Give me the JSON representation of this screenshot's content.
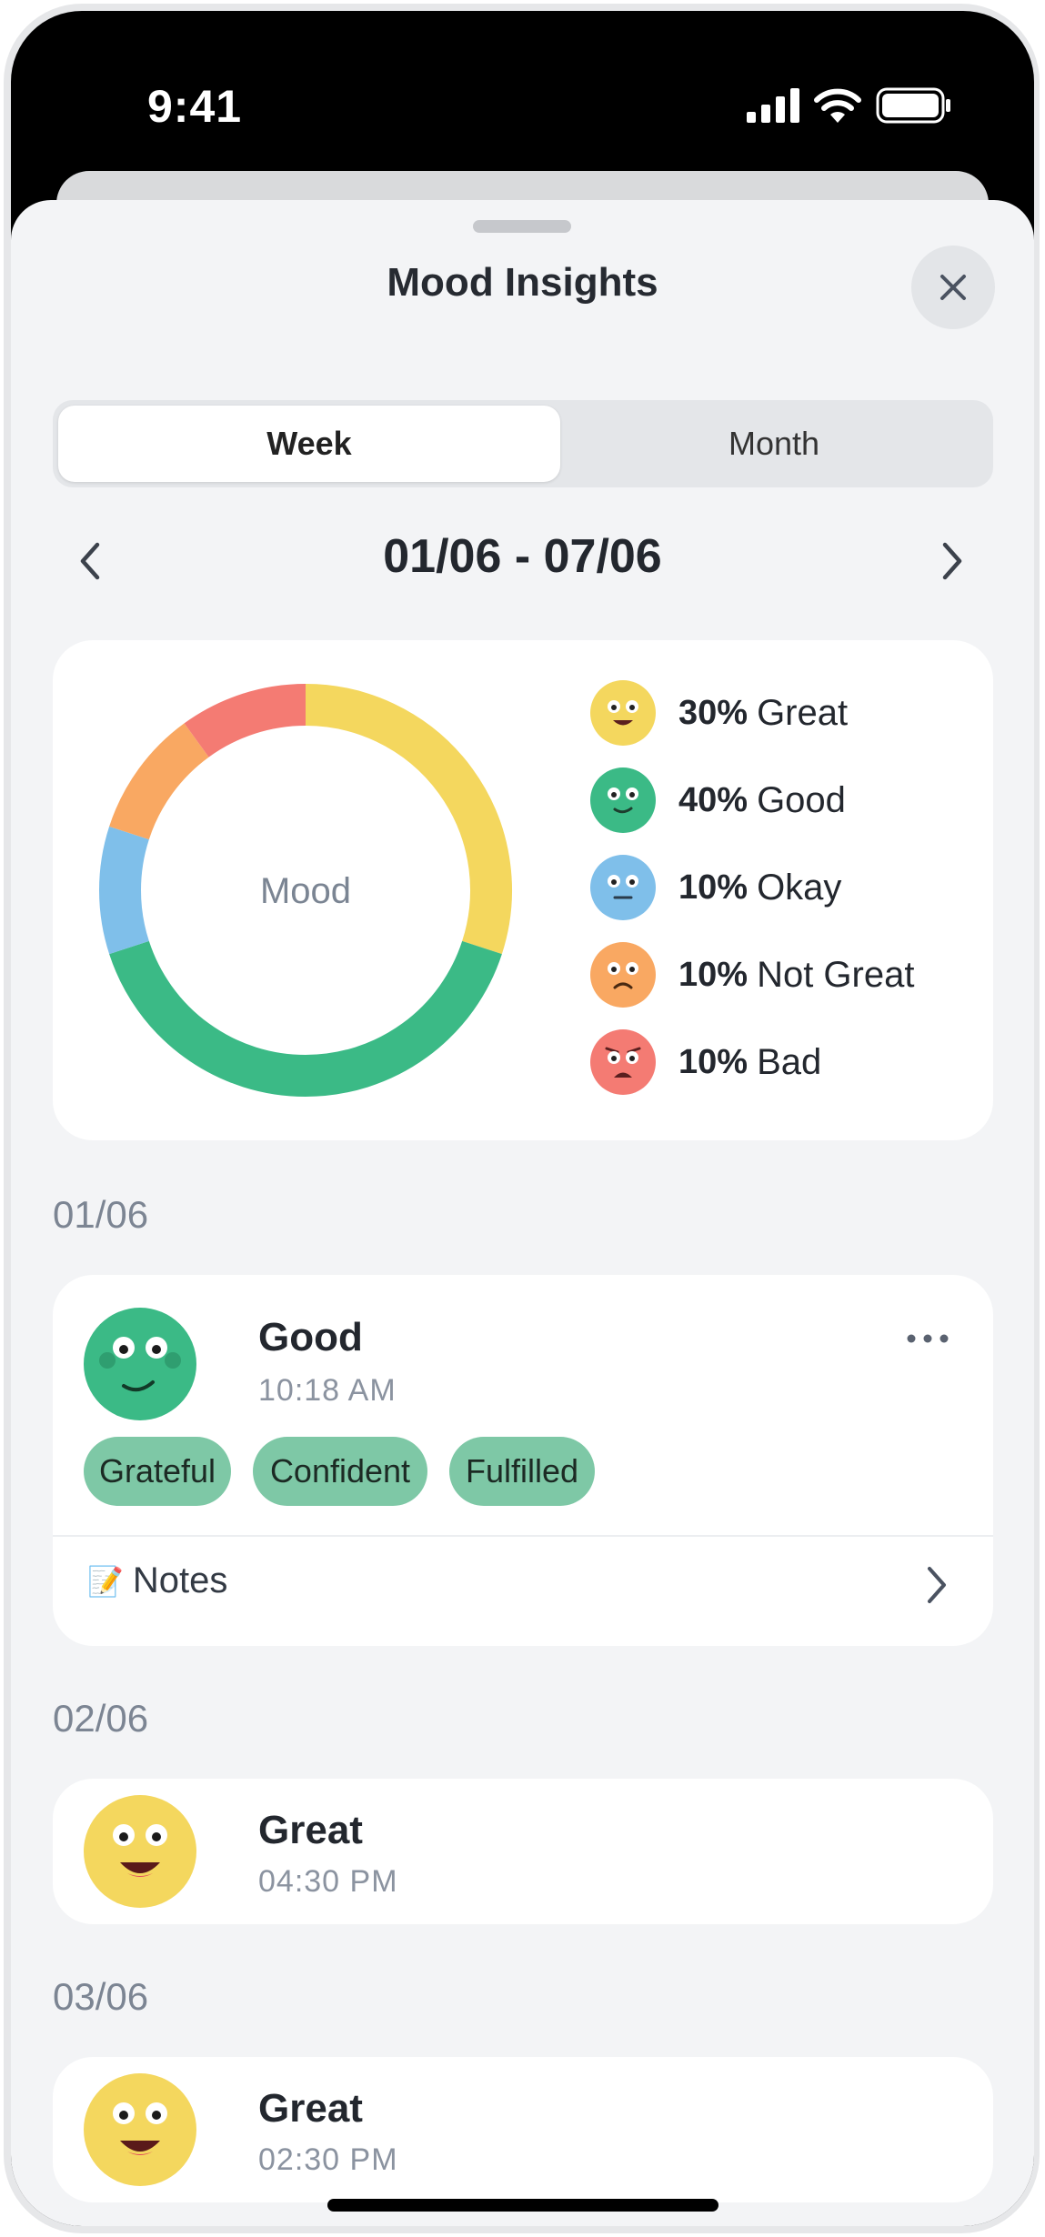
{
  "status_bar": {
    "time": "9:41"
  },
  "sheet": {
    "title": "Mood Insights"
  },
  "segment": {
    "week": "Week",
    "month": "Month",
    "selected": "Week"
  },
  "range": {
    "label": "01/06 - 07/06"
  },
  "chart": {
    "center_label": "Mood",
    "legend": [
      {
        "pct": "30%",
        "label": "Great"
      },
      {
        "pct": "40%",
        "label": "Good"
      },
      {
        "pct": "10%",
        "label": "Okay"
      },
      {
        "pct": "10%",
        "label": "Not Great"
      },
      {
        "pct": "10%",
        "label": "Bad"
      }
    ]
  },
  "chart_data": {
    "type": "pie",
    "categories": [
      "Great",
      "Good",
      "Okay",
      "Not Great",
      "Bad"
    ],
    "values": [
      30,
      40,
      10,
      10,
      10
    ],
    "colors": [
      "#f4d75e",
      "#3bba86",
      "#7fbfea",
      "#f9a862",
      "#f47b73"
    ]
  },
  "entries": [
    {
      "date": "01/06",
      "mood": "Good",
      "time": "10:18 AM",
      "tags": [
        "Grateful",
        "Confident",
        "Fulfilled"
      ],
      "notes_label": "Notes",
      "notes_icon": "📝"
    },
    {
      "date": "02/06",
      "mood": "Great",
      "time": "04:30 PM"
    },
    {
      "date": "03/06",
      "mood": "Great",
      "time": "02:30 PM"
    }
  ],
  "colors": {
    "great": "#f4d75e",
    "good": "#3bba86",
    "okay": "#7fbfea",
    "not_great": "#f9a862",
    "bad": "#f47b73",
    "tag": "#7ec8a6"
  }
}
